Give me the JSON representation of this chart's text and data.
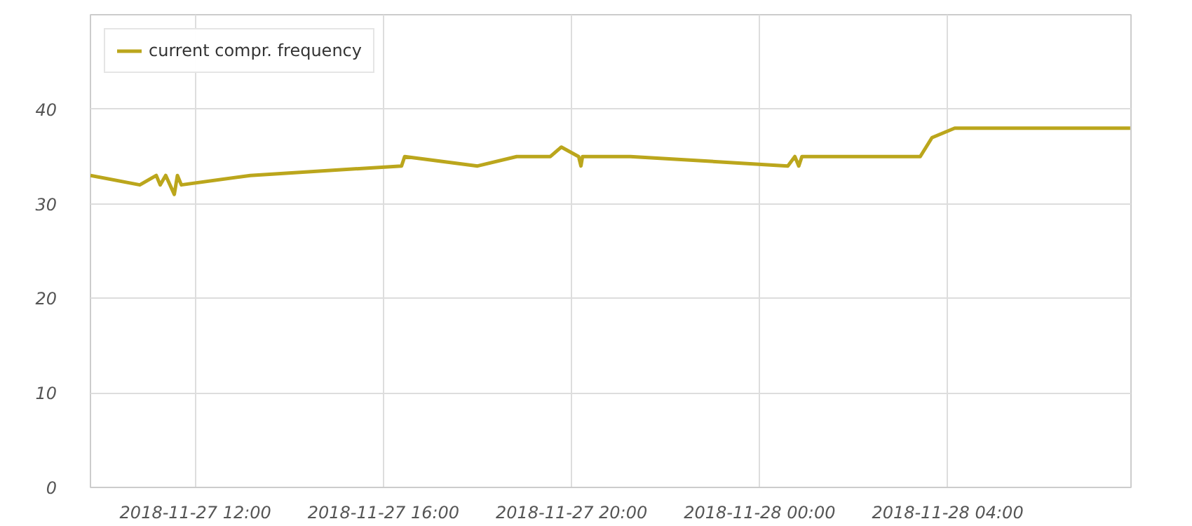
{
  "chart_data": {
    "type": "line",
    "legend": "top left",
    "grid": true,
    "marker": "none",
    "line_style": "solid",
    "x": [
      "2018-11-27T09:46",
      "2018-11-27T10:49",
      "2018-11-27T11:10",
      "2018-11-27T11:15",
      "2018-11-27T11:22",
      "2018-11-27T11:33",
      "2018-11-27T11:37",
      "2018-11-27T11:42",
      "2018-11-27T13:10",
      "2018-11-27T16:23",
      "2018-11-27T16:27",
      "2018-11-27T18:00",
      "2018-11-27T18:50",
      "2018-11-27T19:33",
      "2018-11-27T19:47",
      "2018-11-27T20:09",
      "2018-11-27T20:12",
      "2018-11-27T20:14",
      "2018-11-27T21:15",
      "2018-11-28T00:36",
      "2018-11-28T00:45",
      "2018-11-28T00:50",
      "2018-11-28T00:54",
      "2018-11-28T03:25",
      "2018-11-28T03:40",
      "2018-11-28T04:09",
      "2018-11-28T07:53"
    ],
    "series": [
      {
        "name": "current compr. frequency",
        "color": "#bba61c",
        "values": [
          33,
          32,
          33,
          32,
          33,
          31,
          33,
          32,
          33,
          34,
          35,
          34,
          35,
          35,
          36,
          35,
          34,
          35,
          35,
          34,
          35,
          34,
          35,
          35,
          37,
          38,
          38
        ]
      }
    ],
    "xlim": [
      "2018-11-27T09:46",
      "2018-11-28T07:54"
    ],
    "xticks": [
      {
        "value": "2018-11-27T12:00",
        "label": "2018-11-27 12:00"
      },
      {
        "value": "2018-11-27T16:00",
        "label": "2018-11-27 16:00"
      },
      {
        "value": "2018-11-27T20:00",
        "label": "2018-11-27 20:00"
      },
      {
        "value": "2018-11-28T00:00",
        "label": "2018-11-28 00:00"
      },
      {
        "value": "2018-11-28T04:00",
        "label": "2018-11-28 04:00"
      }
    ],
    "ylim": [
      0,
      50
    ],
    "yticks": [
      0,
      10,
      20,
      30,
      40
    ]
  }
}
